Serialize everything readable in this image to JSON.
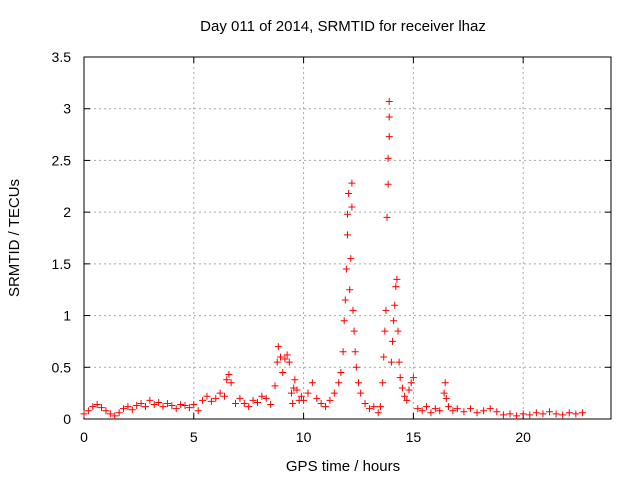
{
  "chart_data": {
    "type": "scatter",
    "title": "Day 011 of 2014, SRMTID for receiver lhaz",
    "xlabel": "GPS time / hours",
    "ylabel": "SRMTID / TECUs",
    "xlim": [
      0,
      24
    ],
    "ylim": [
      0,
      3.5
    ],
    "x_ticks": [
      0,
      5,
      10,
      15,
      20
    ],
    "x_tick_labels": [
      "0",
      "5",
      "10",
      "15",
      "20"
    ],
    "y_ticks": [
      0,
      0.5,
      1,
      1.5,
      2,
      2.5,
      3,
      3.5
    ],
    "y_tick_labels": [
      "0",
      "0.5",
      "1",
      "1.5",
      "2",
      "2.5",
      "3",
      "3.5"
    ],
    "grid": true,
    "marker": "+",
    "color": "#ff0000",
    "series": [
      {
        "name": "SRMTID",
        "points": [
          [
            0.0,
            0.05
          ],
          [
            0.2,
            0.08
          ],
          [
            0.4,
            0.12
          ],
          [
            0.6,
            0.14
          ],
          [
            0.8,
            0.11
          ],
          [
            1.0,
            0.08
          ],
          [
            1.2,
            0.05
          ],
          [
            1.4,
            0.03
          ],
          [
            1.6,
            0.06
          ],
          [
            1.8,
            0.1
          ],
          [
            2.0,
            0.12
          ],
          [
            2.2,
            0.09
          ],
          [
            2.4,
            0.13
          ],
          [
            2.6,
            0.15
          ],
          [
            2.8,
            0.12
          ],
          [
            3.0,
            0.18
          ],
          [
            3.2,
            0.14
          ],
          [
            3.4,
            0.16
          ],
          [
            3.6,
            0.12
          ],
          [
            3.8,
            0.15
          ],
          [
            4.0,
            0.13
          ],
          [
            4.2,
            0.1
          ],
          [
            4.4,
            0.14
          ],
          [
            4.6,
            0.13
          ],
          [
            4.8,
            0.11
          ],
          [
            5.0,
            0.14
          ],
          [
            5.2,
            0.08
          ],
          [
            5.4,
            0.18
          ],
          [
            5.6,
            0.22
          ],
          [
            5.8,
            0.17
          ],
          [
            6.0,
            0.2
          ],
          [
            6.2,
            0.25
          ],
          [
            6.4,
            0.22
          ],
          [
            6.5,
            0.38
          ],
          [
            6.6,
            0.43
          ],
          [
            6.7,
            0.35
          ],
          [
            6.9,
            0.15
          ],
          [
            7.1,
            0.2
          ],
          [
            7.3,
            0.15
          ],
          [
            7.5,
            0.12
          ],
          [
            7.7,
            0.18
          ],
          [
            7.9,
            0.16
          ],
          [
            8.1,
            0.22
          ],
          [
            8.3,
            0.2
          ],
          [
            8.5,
            0.14
          ],
          [
            8.7,
            0.32
          ],
          [
            8.8,
            0.55
          ],
          [
            8.85,
            0.7
          ],
          [
            8.95,
            0.6
          ],
          [
            9.05,
            0.45
          ],
          [
            9.15,
            0.58
          ],
          [
            9.25,
            0.62
          ],
          [
            9.35,
            0.55
          ],
          [
            9.45,
            0.25
          ],
          [
            9.5,
            0.15
          ],
          [
            9.55,
            0.3
          ],
          [
            9.6,
            0.38
          ],
          [
            9.7,
            0.28
          ],
          [
            9.8,
            0.18
          ],
          [
            9.9,
            0.22
          ],
          [
            10.0,
            0.18
          ],
          [
            10.2,
            0.25
          ],
          [
            10.4,
            0.35
          ],
          [
            10.6,
            0.2
          ],
          [
            10.8,
            0.15
          ],
          [
            11.0,
            0.12
          ],
          [
            11.2,
            0.18
          ],
          [
            11.4,
            0.25
          ],
          [
            11.6,
            0.35
          ],
          [
            11.7,
            0.45
          ],
          [
            11.8,
            0.65
          ],
          [
            11.85,
            0.95
          ],
          [
            11.9,
            1.15
          ],
          [
            11.95,
            1.45
          ],
          [
            12.0,
            1.78
          ],
          [
            12.0,
            1.98
          ],
          [
            12.05,
            2.18
          ],
          [
            12.1,
            1.25
          ],
          [
            12.15,
            1.55
          ],
          [
            12.2,
            2.05
          ],
          [
            12.2,
            2.28
          ],
          [
            12.25,
            1.05
          ],
          [
            12.3,
            0.85
          ],
          [
            12.35,
            0.65
          ],
          [
            12.4,
            0.5
          ],
          [
            12.5,
            0.35
          ],
          [
            12.6,
            0.25
          ],
          [
            12.8,
            0.15
          ],
          [
            13.0,
            0.1
          ],
          [
            13.2,
            0.12
          ],
          [
            13.4,
            0.06
          ],
          [
            13.5,
            0.12
          ],
          [
            13.6,
            0.35
          ],
          [
            13.65,
            0.6
          ],
          [
            13.7,
            0.85
          ],
          [
            13.75,
            1.05
          ],
          [
            13.8,
            1.95
          ],
          [
            13.85,
            2.27
          ],
          [
            13.85,
            2.52
          ],
          [
            13.9,
            2.73
          ],
          [
            13.9,
            2.92
          ],
          [
            13.9,
            3.07
          ],
          [
            14.0,
            0.55
          ],
          [
            14.05,
            0.75
          ],
          [
            14.1,
            0.95
          ],
          [
            14.15,
            1.1
          ],
          [
            14.2,
            1.28
          ],
          [
            14.25,
            1.35
          ],
          [
            14.3,
            0.85
          ],
          [
            14.35,
            0.55
          ],
          [
            14.4,
            0.4
          ],
          [
            14.5,
            0.3
          ],
          [
            14.6,
            0.22
          ],
          [
            14.7,
            0.18
          ],
          [
            14.8,
            0.28
          ],
          [
            14.9,
            0.35
          ],
          [
            15.0,
            0.4
          ],
          [
            15.2,
            0.1
          ],
          [
            15.4,
            0.08
          ],
          [
            15.6,
            0.12
          ],
          [
            15.8,
            0.06
          ],
          [
            16.0,
            0.1
          ],
          [
            16.2,
            0.08
          ],
          [
            16.4,
            0.25
          ],
          [
            16.45,
            0.35
          ],
          [
            16.5,
            0.2
          ],
          [
            16.6,
            0.12
          ],
          [
            16.8,
            0.08
          ],
          [
            17.0,
            0.1
          ],
          [
            17.3,
            0.07
          ],
          [
            17.6,
            0.1
          ],
          [
            17.9,
            0.06
          ],
          [
            18.2,
            0.08
          ],
          [
            18.5,
            0.1
          ],
          [
            18.8,
            0.07
          ],
          [
            19.1,
            0.04
          ],
          [
            19.4,
            0.05
          ],
          [
            19.7,
            0.03
          ],
          [
            20.0,
            0.05
          ],
          [
            20.3,
            0.04
          ],
          [
            20.6,
            0.06
          ],
          [
            20.9,
            0.05
          ],
          [
            21.2,
            0.07
          ],
          [
            21.5,
            0.05
          ],
          [
            21.8,
            0.04
          ],
          [
            22.1,
            0.06
          ],
          [
            22.4,
            0.05
          ],
          [
            22.7,
            0.06
          ]
        ]
      }
    ]
  }
}
